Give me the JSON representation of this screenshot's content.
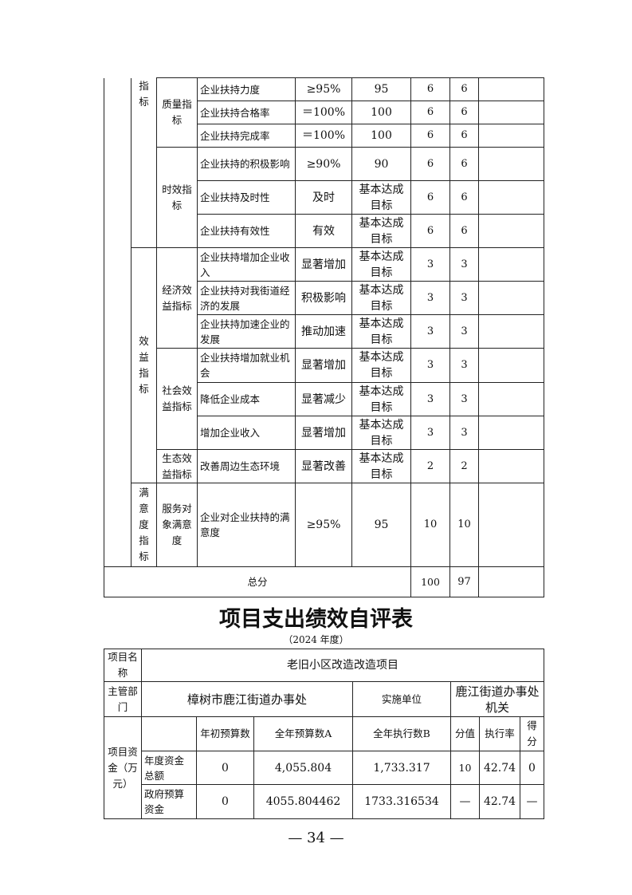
{
  "table1": {
    "level1": [
      "指标",
      "效益指标",
      "满意度指标"
    ],
    "level2": [
      "质量指标",
      "时效指标",
      "经济效益指标",
      "社会效益指标",
      "生态效益指标",
      "服务对象满意度"
    ],
    "rows": [
      {
        "name": "企业扶持力度",
        "target": "≥95%",
        "actual": "95",
        "weight": "6",
        "score": "6"
      },
      {
        "name": "企业扶持合格率",
        "target": "＝100%",
        "actual": "100",
        "weight": "6",
        "score": "6"
      },
      {
        "name": "企业扶持完成率",
        "target": "＝100%",
        "actual": "100",
        "weight": "6",
        "score": "6"
      },
      {
        "name": "企业扶持的积极影响",
        "target": "≥90%",
        "actual": "90",
        "weight": "6",
        "score": "6"
      },
      {
        "name": "企业扶持及时性",
        "target": "及时",
        "actual": "基本达成目标",
        "weight": "6",
        "score": "6"
      },
      {
        "name": "企业扶持有效性",
        "target": "有效",
        "actual": "基本达成目标",
        "weight": "6",
        "score": "6"
      },
      {
        "name": "企业扶持增加企业收入",
        "target": "显著增加",
        "actual": "基本达成目标",
        "weight": "3",
        "score": "3"
      },
      {
        "name": "企业扶持对我街道经济的发展",
        "target": "积极影响",
        "actual": "基本达成目标",
        "weight": "3",
        "score": "3"
      },
      {
        "name": "企业扶持加速企业的发展",
        "target": "推动加速",
        "actual": "基本达成目标",
        "weight": "3",
        "score": "3"
      },
      {
        "name": "企业扶持增加就业机会",
        "target": "显著增加",
        "actual": "基本达成目标",
        "weight": "3",
        "score": "3"
      },
      {
        "name": "降低企业成本",
        "target": "显著减少",
        "actual": "基本达成目标",
        "weight": "3",
        "score": "3"
      },
      {
        "name": "增加企业收入",
        "target": "显著增加",
        "actual": "基本达成目标",
        "weight": "3",
        "score": "3"
      },
      {
        "name": "改善周边生态环境",
        "target": "显著改善",
        "actual": "基本达成目标",
        "weight": "2",
        "score": "2"
      },
      {
        "name": "企业对企业扶持的满意度",
        "target": "≥95%",
        "actual": "95",
        "weight": "10",
        "score": "10"
      }
    ],
    "total": {
      "label": "总分",
      "weight": "100",
      "score": "97"
    }
  },
  "title": "项目支出绩效自评表",
  "year": "（2024 年度）",
  "table2": {
    "project_name_label": "项目名称",
    "project_name": "老旧小区改造改造项目",
    "dept_label": "主管部门",
    "dept": "樟树市鹿江街道办事处",
    "impl_label": "实施单位",
    "impl": "鹿江街道办事处机关",
    "funds_label": "项目资金（万元）",
    "headers": [
      "",
      "年初预算数",
      "全年预算数A",
      "全年执行数B",
      "分值",
      "执行率",
      "得分"
    ],
    "rows": [
      [
        "年度资金总额",
        "0",
        "4,055.804",
        "1,733.317",
        "10",
        "42.74",
        "0"
      ],
      [
        "政府预算资金",
        "0",
        "4055.804462",
        "1733.316534",
        "—",
        "42.74",
        "—"
      ]
    ]
  },
  "page_number": "— 34 —"
}
